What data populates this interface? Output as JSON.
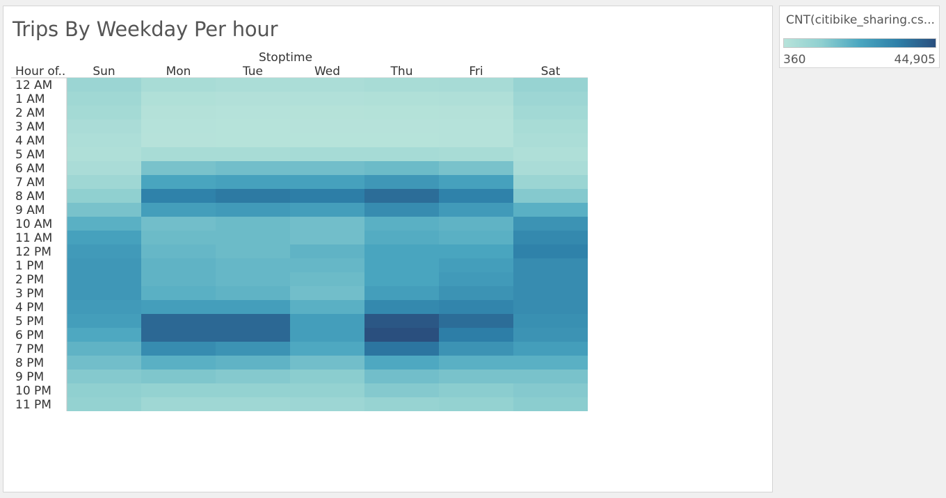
{
  "dashboard": {
    "title": "Trips By Weekday Per hour"
  },
  "legend": {
    "title": "CNT(citibike_sharing.cs...",
    "min_label": "360",
    "max_label": "44,905",
    "colors": [
      "#b7e3da",
      "#8ecfd0",
      "#4aa6c0",
      "#2d7fa8",
      "#2a4f7e"
    ]
  },
  "chart_data": {
    "type": "heatmap",
    "title": "Trips By Weekday Per hour",
    "column_group_label": "Stoptime",
    "row_header_label": "Hour of..",
    "columns": [
      "Sun",
      "Mon",
      "Tue",
      "Wed",
      "Thu",
      "Fri",
      "Sat"
    ],
    "rows": [
      "12 AM",
      "1 AM",
      "2 AM",
      "3 AM",
      "4 AM",
      "5 AM",
      "6 AM",
      "7 AM",
      "8 AM",
      "9 AM",
      "10 AM",
      "11 AM",
      "12 PM",
      "1 PM",
      "2 PM",
      "3 PM",
      "4 PM",
      "5 PM",
      "6 PM",
      "7 PM",
      "8 PM",
      "9 PM",
      "10 PM",
      "11 PM"
    ],
    "value_range": [
      360,
      44905
    ],
    "measure": "CNT(citibike_sharing.cs...",
    "values": [
      [
        8000,
        4500,
        3500,
        3500,
        4500,
        4800,
        9000
      ],
      [
        6500,
        2200,
        1800,
        2000,
        2200,
        2500,
        7500
      ],
      [
        5500,
        1200,
        900,
        1000,
        1100,
        1300,
        6000
      ],
      [
        4000,
        800,
        600,
        700,
        700,
        900,
        4500
      ],
      [
        3000,
        700,
        500,
        600,
        600,
        800,
        3500
      ],
      [
        2500,
        4500,
        4500,
        5000,
        5000,
        4500,
        2500
      ],
      [
        4000,
        15000,
        16000,
        16000,
        17000,
        15000,
        4000
      ],
      [
        7000,
        23000,
        24000,
        24000,
        27000,
        24000,
        8000
      ],
      [
        11000,
        33000,
        35000,
        34000,
        38000,
        33000,
        13000
      ],
      [
        15000,
        25000,
        26000,
        25000,
        30000,
        26000,
        20000
      ],
      [
        20000,
        16000,
        17000,
        16000,
        20000,
        19000,
        28000
      ],
      [
        24000,
        17000,
        17000,
        16000,
        21000,
        20000,
        31000
      ],
      [
        26000,
        18000,
        17000,
        19000,
        23000,
        23000,
        33000
      ],
      [
        27000,
        19000,
        18000,
        18000,
        23000,
        25000,
        30000
      ],
      [
        27000,
        19000,
        18000,
        17000,
        23000,
        26000,
        30000
      ],
      [
        27000,
        20000,
        19000,
        16000,
        25000,
        28000,
        30000
      ],
      [
        26000,
        25000,
        25000,
        20000,
        31000,
        32000,
        30000
      ],
      [
        25000,
        39000,
        39000,
        25000,
        43000,
        38000,
        29000
      ],
      [
        22000,
        39000,
        39000,
        25000,
        44905,
        34000,
        28000
      ],
      [
        19000,
        30000,
        28000,
        22000,
        36000,
        28000,
        25000
      ],
      [
        16000,
        20000,
        19000,
        16000,
        22000,
        20000,
        20000
      ],
      [
        13000,
        14000,
        13000,
        12000,
        16000,
        15000,
        15000
      ],
      [
        11000,
        10000,
        10000,
        10000,
        13000,
        12000,
        13000
      ],
      [
        10000,
        7000,
        7000,
        7500,
        9000,
        10000,
        12000
      ]
    ]
  }
}
